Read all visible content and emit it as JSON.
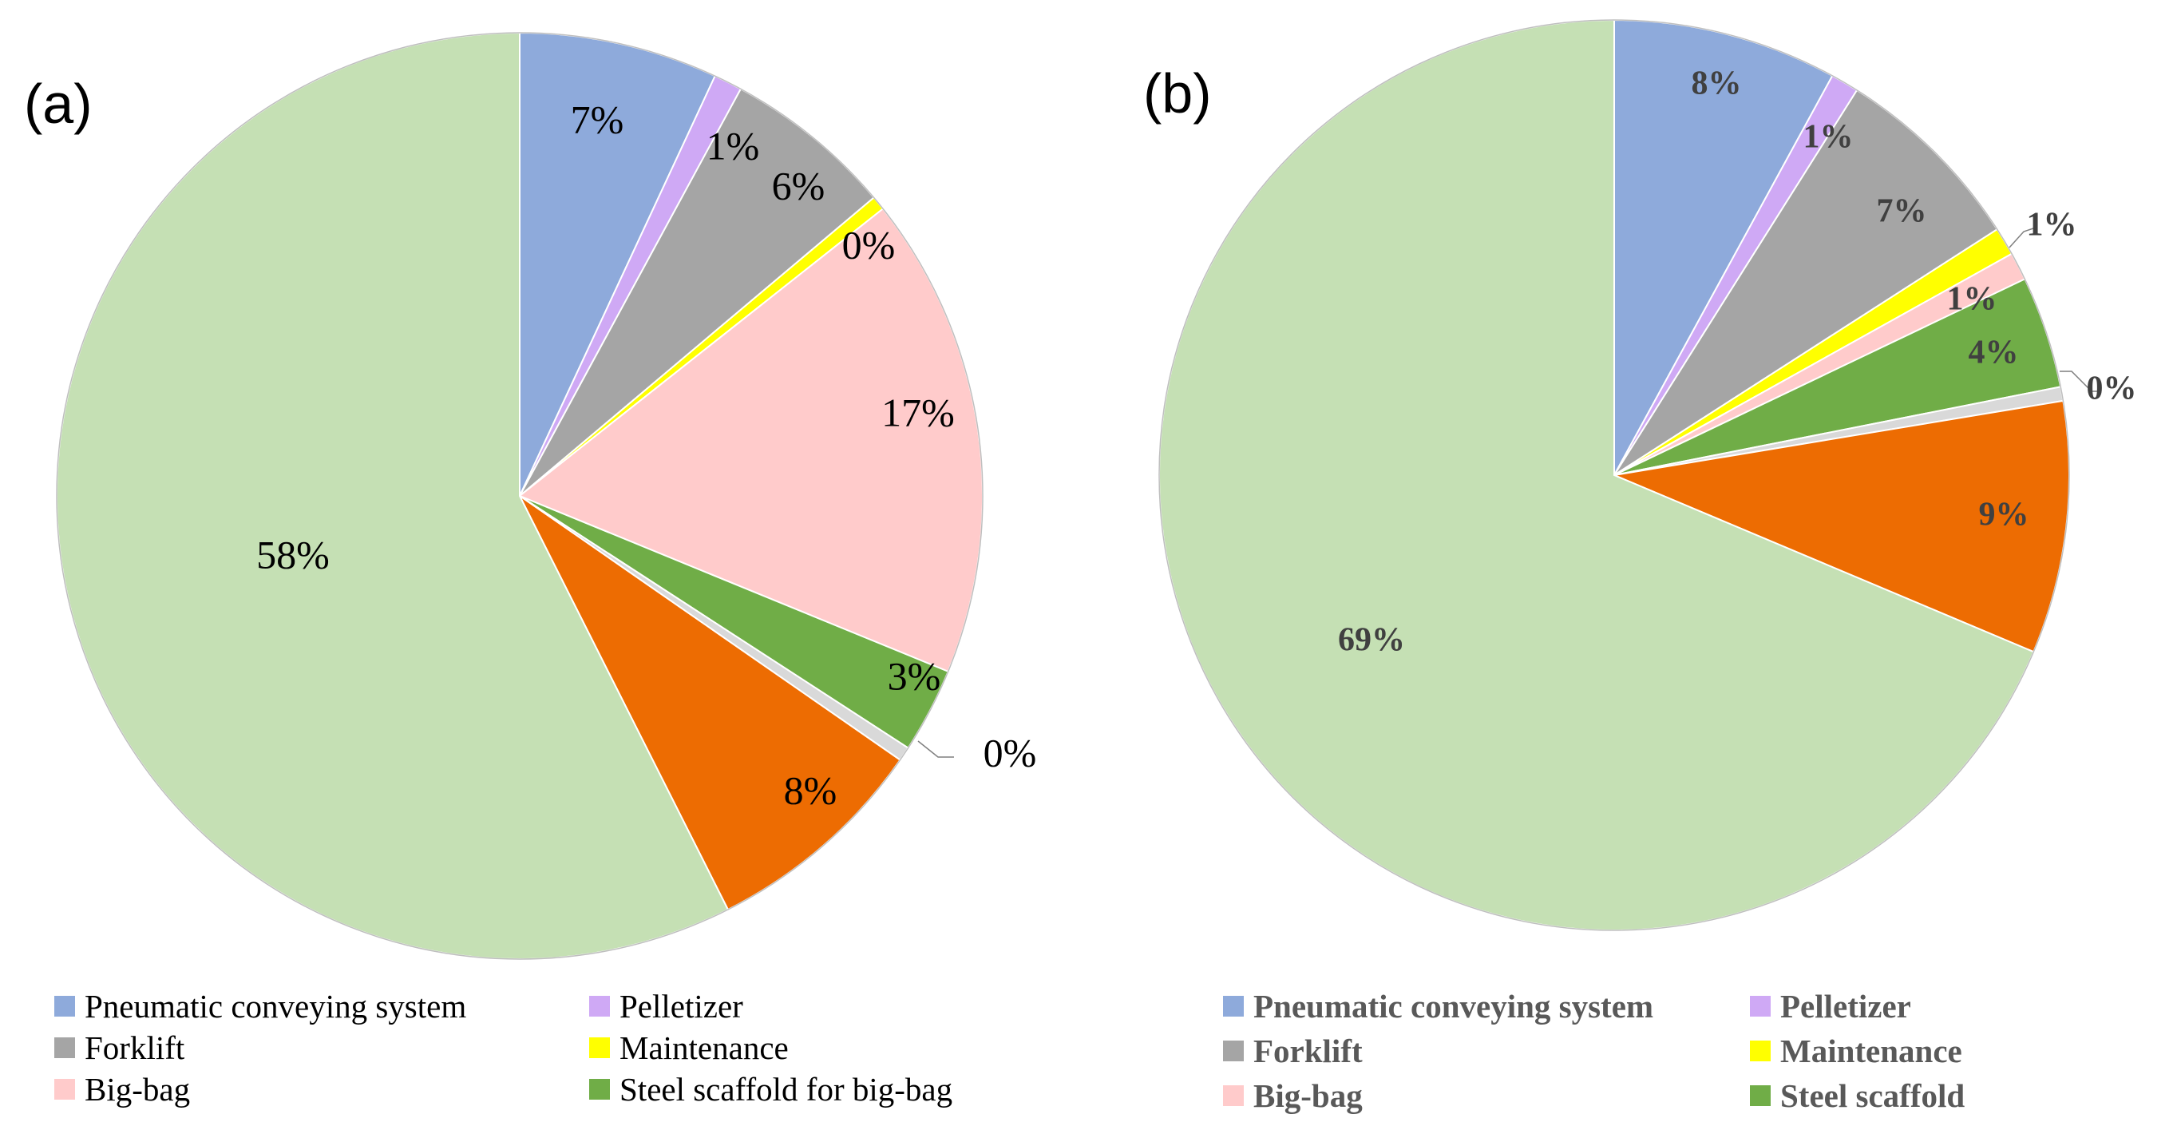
{
  "chart_data": [
    {
      "type": "pie",
      "panel_label": "(a)",
      "categories": [
        "Pneumatic conveying system",
        "Pelletizer",
        "Forklift",
        "Maintenance",
        "Big-bag",
        "Steel scaffold for big-bag",
        "",
        "",
        ""
      ],
      "values": [
        7,
        1,
        6,
        0,
        17,
        3,
        0,
        8,
        58
      ],
      "data_labels": [
        "7%",
        "1%",
        "6%",
        "0%",
        "17%",
        "3%",
        "0%",
        "8%",
        "58%"
      ],
      "colors": [
        "#8eaadb",
        "#cfa9f5",
        "#a5a5a5",
        "#ffff00",
        "#ffcbcb",
        "#70ad47",
        "#d9d9d9",
        "#ed6c02",
        "#c5e0b4"
      ],
      "legend_position": "bottom"
    },
    {
      "type": "pie",
      "panel_label": "(b)",
      "categories": [
        "Pneumatic conveying system",
        "Pelletizer",
        "Forklift",
        "Maintenance",
        "Big-bag",
        "Steel scaffold",
        "",
        "",
        ""
      ],
      "values": [
        8,
        1,
        7,
        1,
        1,
        4,
        0,
        9,
        69
      ],
      "data_labels": [
        "8%",
        "1%",
        "7%",
        "1%",
        "1%",
        "4%",
        "0%",
        "9%",
        "69%"
      ],
      "colors": [
        "#8eaadb",
        "#cfa9f5",
        "#a5a5a5",
        "#ffff00",
        "#ffcbcb",
        "#70ad47",
        "#d9d9d9",
        "#ed6c02",
        "#c5e0b4"
      ],
      "legend_position": "bottom"
    }
  ],
  "legend_a": [
    {
      "label": "Pneumatic conveying system",
      "color": "#8eaadb"
    },
    {
      "label": "Pelletizer",
      "color": "#cfa9f5"
    },
    {
      "label": "Forklift",
      "color": "#a5a5a5"
    },
    {
      "label": "Maintenance",
      "color": "#ffff00"
    },
    {
      "label": "Big-bag",
      "color": "#ffcbcb"
    },
    {
      "label": "Steel scaffold for big-bag",
      "color": "#70ad47"
    }
  ],
  "legend_b": [
    {
      "label": "Pneumatic conveying system",
      "color": "#8eaadb"
    },
    {
      "label": "Pelletizer",
      "color": "#cfa9f5"
    },
    {
      "label": "Forklift",
      "color": "#a5a5a5"
    },
    {
      "label": "Maintenance",
      "color": "#ffff00"
    },
    {
      "label": "Big-bag",
      "color": "#ffcbcb"
    },
    {
      "label": "Steel scaffold",
      "color": "#70ad47"
    }
  ]
}
